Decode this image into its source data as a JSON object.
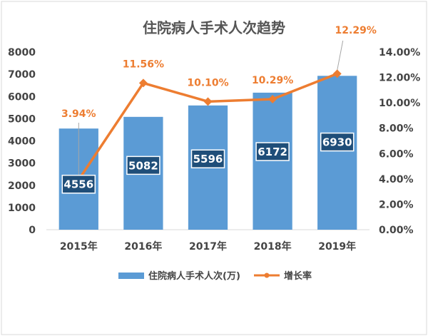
{
  "colors": {
    "bar": "#5b9bd5",
    "line": "#ed7d31",
    "label_box": "#1f4e79",
    "leader": "#a6a6a6"
  },
  "chart_data": {
    "type": "bar",
    "title": "住院病人手术人次趋势",
    "categories": [
      "2015年",
      "2016年",
      "2017年",
      "2018年",
      "2019年"
    ],
    "series": [
      {
        "name": "住院病人手术人次(万)",
        "type": "bar",
        "axis": "left",
        "values": [
          4556,
          5082,
          5596,
          6172,
          6930
        ],
        "labels": [
          "4556",
          "5082",
          "5596",
          "6172",
          "6930"
        ]
      },
      {
        "name": "增长率",
        "type": "line",
        "axis": "right",
        "values": [
          3.94,
          11.56,
          10.1,
          10.29,
          12.29
        ],
        "labels": [
          "3.94%",
          "11.56%",
          "10.10%",
          "10.29%",
          "12.29%"
        ]
      }
    ],
    "y_left": {
      "min": 0,
      "max": 8000,
      "ticks": [
        "0",
        "1000",
        "2000",
        "3000",
        "4000",
        "5000",
        "6000",
        "7000",
        "8000"
      ]
    },
    "y_right": {
      "min": 0,
      "max": 14,
      "ticks": [
        "0.00%",
        "2.00%",
        "4.00%",
        "6.00%",
        "8.00%",
        "10.00%",
        "12.00%",
        "14.00%"
      ]
    },
    "legend": {
      "position": "bottom"
    },
    "grid": false
  }
}
